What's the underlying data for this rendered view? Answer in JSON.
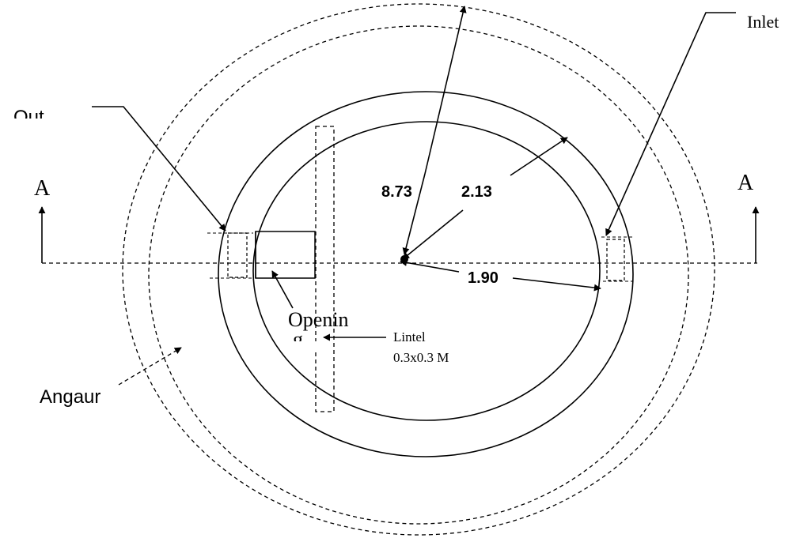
{
  "labels": {
    "inlet": "Inlet",
    "outlet": "Out",
    "section_left": "A",
    "section_right": "A",
    "dim_large_radius": "8.73",
    "dim_mid_radius": "2.13",
    "dim_small_radius": "1.90",
    "opening_line1": "Openin",
    "opening_line2": "g",
    "lintel_line1": "Lintel",
    "lintel_line2": "0.3x0.3 M",
    "angaur": "Angaur"
  },
  "colors": {
    "stroke": "#000000",
    "background": "#ffffff"
  }
}
